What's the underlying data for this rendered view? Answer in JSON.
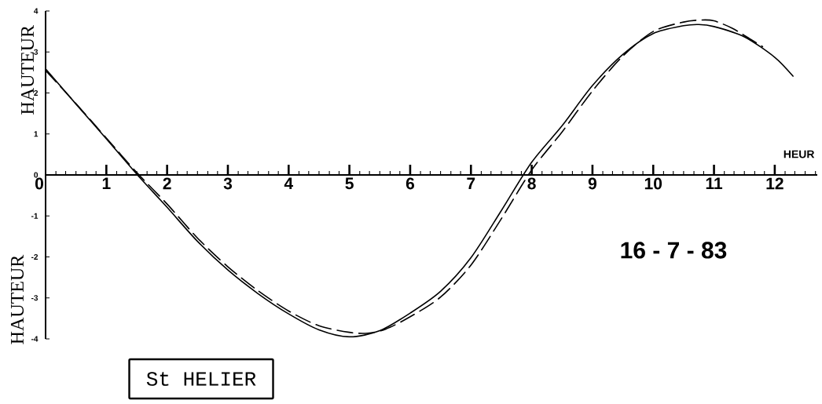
{
  "chart_data": {
    "type": "line",
    "title": "St HELIER",
    "subtitle": "16 - 7 - 83",
    "xlabel": "HEUR",
    "ylabel": "HAUTEUR",
    "annotations": [
      "HAUTEUR"
    ],
    "xlim": [
      0,
      12.7
    ],
    "ylim": [
      -4,
      4
    ],
    "xticks": [
      0,
      {
        "value": 0.17,
        "label": null
      },
      {
        "value": 0.33,
        "label": null
      },
      {
        "value": 0.5,
        "label": null
      },
      {
        "value": 0.67,
        "label": null
      },
      {
        "value": 0.83,
        "label": null
      },
      1,
      {
        "value": 1.17,
        "label": null
      },
      {
        "value": 1.33,
        "label": null
      },
      {
        "value": 1.5,
        "label": null
      },
      {
        "value": 1.67,
        "label": null
      },
      {
        "value": 1.83,
        "label": null
      },
      2,
      {
        "value": 2.17,
        "label": null
      },
      {
        "value": 2.33,
        "label": null
      },
      {
        "value": 2.5,
        "label": null
      },
      {
        "value": 2.67,
        "label": null
      },
      {
        "value": 2.83,
        "label": null
      },
      3,
      {
        "value": 3.17,
        "label": null
      },
      {
        "value": 3.33,
        "label": null
      },
      {
        "value": 3.5,
        "label": null
      },
      {
        "value": 3.67,
        "label": null
      },
      {
        "value": 3.83,
        "label": null
      },
      4,
      {
        "value": 4.17,
        "label": null
      },
      {
        "value": 4.33,
        "label": null
      },
      {
        "value": 4.5,
        "label": null
      },
      {
        "value": 4.67,
        "label": null
      },
      {
        "value": 4.83,
        "label": null
      },
      5,
      {
        "value": 5.17,
        "label": null
      },
      {
        "value": 5.33,
        "label": null
      },
      {
        "value": 5.5,
        "label": null
      },
      {
        "value": 5.67,
        "label": null
      },
      {
        "value": 5.83,
        "label": null
      },
      6,
      {
        "value": 6.17,
        "label": null
      },
      {
        "value": 6.33,
        "label": null
      },
      {
        "value": 6.5,
        "label": null
      },
      {
        "value": 6.67,
        "label": null
      },
      {
        "value": 6.83,
        "label": null
      },
      7,
      {
        "value": 7.17,
        "label": null
      },
      {
        "value": 7.33,
        "label": null
      },
      {
        "value": 7.5,
        "label": null
      },
      {
        "value": 7.67,
        "label": null
      },
      {
        "value": 7.83,
        "label": null
      },
      8,
      {
        "value": 8.17,
        "label": null
      },
      {
        "value": 8.33,
        "label": null
      },
      {
        "value": 8.5,
        "label": null
      },
      {
        "value": 8.67,
        "label": null
      },
      {
        "value": 8.83,
        "label": null
      },
      9,
      {
        "value": 9.17,
        "label": null
      },
      {
        "value": 9.33,
        "label": null
      },
      {
        "value": 9.5,
        "label": null
      },
      {
        "value": 9.67,
        "label": null
      },
      {
        "value": 9.83,
        "label": null
      },
      10,
      {
        "value": 10.17,
        "label": null
      },
      {
        "value": 10.33,
        "label": null
      },
      {
        "value": 10.5,
        "label": null
      },
      {
        "value": 10.67,
        "label": null
      },
      {
        "value": 10.83,
        "label": null
      },
      11,
      {
        "value": 11.17,
        "label": null
      },
      {
        "value": 11.33,
        "label": null
      },
      {
        "value": 11.5,
        "label": null
      },
      {
        "value": 11.67,
        "label": null
      },
      {
        "value": 11.83,
        "label": null
      },
      12,
      {
        "value": 12.17,
        "label": null
      },
      {
        "value": 12.33,
        "label": null
      },
      {
        "value": 12.5,
        "label": null
      },
      {
        "value": 12.67,
        "label": null
      }
    ],
    "yticks": [
      -4,
      -3,
      -2,
      -1,
      0,
      1,
      2,
      3,
      4
    ],
    "series": [
      {
        "color": "#000000",
        "line_style": "solid",
        "x": [
          0,
          0.5,
          1,
          1.5,
          2,
          2.5,
          3,
          3.5,
          4,
          4.5,
          5,
          5.5,
          6,
          6.5,
          7,
          7.5,
          8,
          8.5,
          9,
          9.5,
          10,
          10.5,
          10.75,
          11,
          11.5,
          12,
          12.3
        ],
        "values": [
          2.59,
          1.73,
          0.88,
          0.02,
          -0.79,
          -1.62,
          -2.32,
          -2.9,
          -3.39,
          -3.78,
          -3.95,
          -3.8,
          -3.37,
          -2.84,
          -2.02,
          -0.87,
          0.31,
          1.2,
          2.18,
          2.94,
          3.45,
          3.64,
          3.67,
          3.62,
          3.37,
          2.87,
          2.41
        ]
      },
      {
        "color": "#000000",
        "line_style": "dashed",
        "x": [
          0,
          0.5,
          1,
          1.5,
          2,
          2.5,
          3,
          3.5,
          4,
          4.5,
          5,
          5.3,
          5.6,
          6,
          6.5,
          7,
          7.5,
          8,
          8.5,
          9,
          9.5,
          10,
          10.5,
          10.8,
          11,
          11.3,
          11.6,
          11.8
        ],
        "values": [
          2.55,
          1.74,
          0.9,
          0.06,
          -0.71,
          -1.54,
          -2.24,
          -2.83,
          -3.32,
          -3.68,
          -3.84,
          -3.86,
          -3.76,
          -3.46,
          -2.98,
          -2.2,
          -1.07,
          0.12,
          1.05,
          2.05,
          2.9,
          3.5,
          3.73,
          3.78,
          3.76,
          3.58,
          3.31,
          3.13
        ]
      }
    ]
  }
}
